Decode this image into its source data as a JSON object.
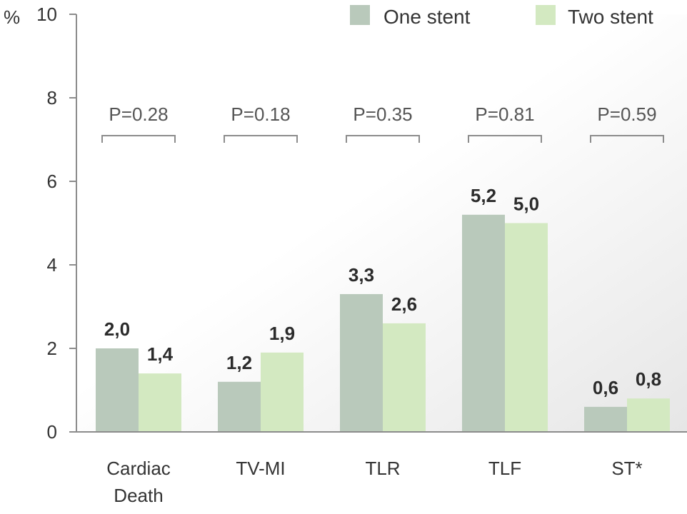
{
  "chart_data": {
    "type": "bar",
    "ylabel": "%",
    "ylim": [
      0,
      10
    ],
    "yticks": [
      0,
      2,
      4,
      6,
      8,
      10
    ],
    "categories": [
      [
        "Cardiac",
        "Death"
      ],
      [
        "TV-MI"
      ],
      [
        "TLR"
      ],
      [
        "TLF"
      ],
      [
        "ST*"
      ]
    ],
    "series": [
      {
        "name": "One stent",
        "color": "#b9c9bb",
        "values": [
          2.0,
          1.2,
          3.3,
          5.2,
          0.6
        ],
        "labels": [
          "2,0",
          "1,2",
          "3,3",
          "5,2",
          "0,6"
        ]
      },
      {
        "name": "Two stent",
        "color": "#d3e9c1",
        "values": [
          1.4,
          1.9,
          2.6,
          5.0,
          0.8
        ],
        "labels": [
          "1,4",
          "1,9",
          "2,6",
          "5,0",
          "0,8"
        ]
      }
    ],
    "p_values": [
      "P=0.28",
      "P=0.18",
      "P=0.35",
      "P=0.81",
      "P=0.59"
    ],
    "legend_position": "top-right",
    "grid": false
  }
}
